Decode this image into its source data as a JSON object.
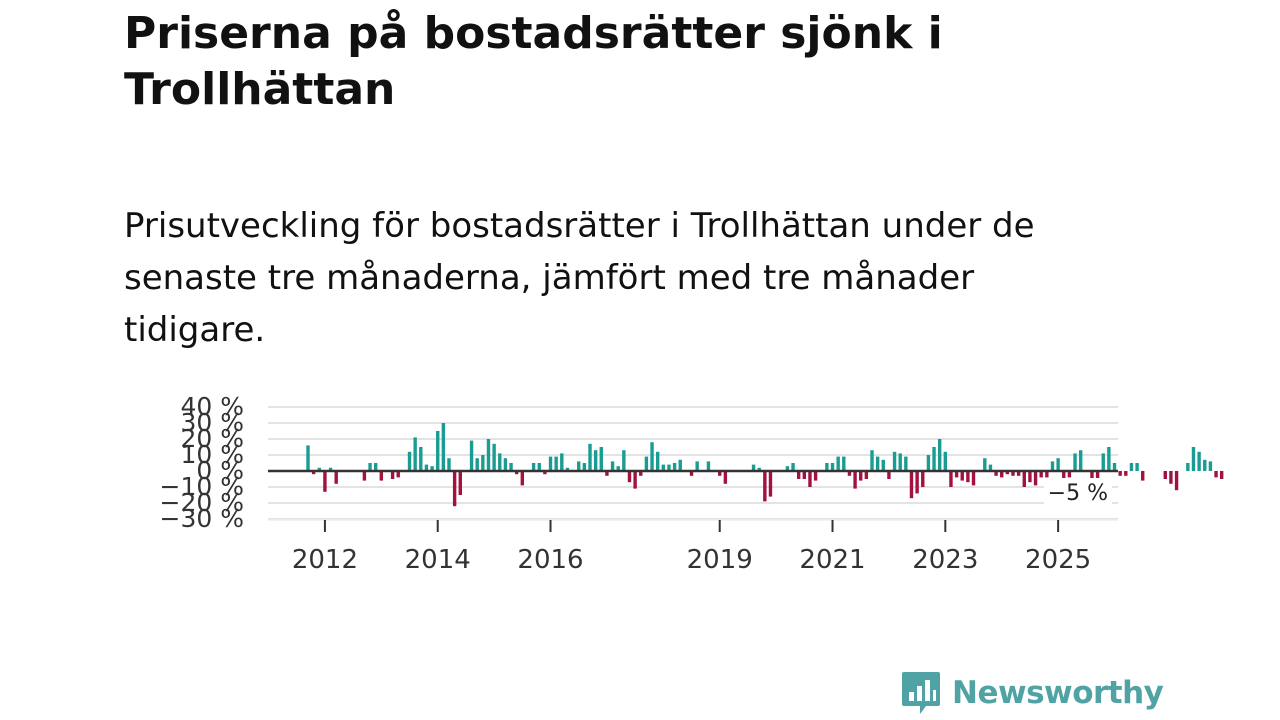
{
  "title": "Priserna på bostadsrätter sjönk i Trollhättan",
  "subtitle": "Prisutveckling för bostadsrätter i Trollhättan under de senaste tre månaderna, jämfört med tre månader tidigare.",
  "brand": {
    "name": "Newsworthy",
    "icon": "newsworthy-logo-icon",
    "color": "#4fa3a5"
  },
  "colors": {
    "positive": "#1a9c93",
    "negative": "#a3123f",
    "grid": "#e3e3e3",
    "zero": "#333333",
    "text": "#333333"
  },
  "chart_data": {
    "type": "bar",
    "title": "Prisutveckling för bostadsrätter i Trollhättan",
    "ylabel": "",
    "xlabel": "",
    "ylim": [
      -30,
      40
    ],
    "yticks": [
      40,
      30,
      20,
      10,
      0,
      -10,
      -20,
      -30
    ],
    "ytick_labels": [
      "40 %",
      "30 %",
      "20 %",
      "10 %",
      "0 %",
      "−10 %",
      "−20 %",
      "−30 %"
    ],
    "xticks": [
      {
        "label": "2012",
        "index": 3
      },
      {
        "label": "2014",
        "index": 23
      },
      {
        "label": "2016",
        "index": 43
      },
      {
        "label": "2019",
        "index": 73
      },
      {
        "label": "2021",
        "index": 93
      },
      {
        "label": "2023",
        "index": 113
      },
      {
        "label": "2025",
        "index": 133
      }
    ],
    "start": "2011-10",
    "end": "2025-09",
    "last_value_label": "−5 %",
    "values": [
      16,
      -2,
      2,
      -13,
      2,
      -8,
      0,
      0,
      0,
      0,
      -6,
      5,
      5,
      -6,
      0,
      -5,
      -4,
      0,
      12,
      21,
      15,
      4,
      3,
      25,
      30,
      8,
      -22,
      -15,
      0,
      19,
      8,
      10,
      20,
      17,
      11,
      8,
      5,
      -2,
      -9,
      0,
      5,
      5,
      -2,
      9,
      9,
      11,
      2,
      0,
      6,
      5,
      17,
      13,
      15,
      -3,
      6,
      3,
      13,
      -7,
      -11,
      -3,
      9,
      18,
      12,
      4,
      4,
      5,
      7,
      0,
      -3,
      6,
      0,
      6,
      0,
      -3,
      -8,
      0,
      0,
      0,
      0,
      4,
      2,
      -19,
      -16,
      0,
      0,
      3,
      5,
      -5,
      -5,
      -10,
      -6,
      0,
      5,
      5,
      9,
      9,
      -3,
      -11,
      -6,
      -5,
      13,
      9,
      7,
      -5,
      12,
      11,
      9,
      -17,
      -14,
      -10,
      10,
      15,
      20,
      12,
      -10,
      -4,
      -6,
      -7,
      -9,
      0,
      8,
      4,
      -3,
      -4,
      -2,
      -3,
      -3,
      -10,
      -7,
      -9,
      -4,
      -4,
      6,
      8,
      -5,
      -4,
      11,
      13,
      0,
      -5,
      -11,
      11,
      15,
      5,
      -3,
      -3,
      5,
      5,
      -6,
      0,
      0,
      0,
      -5,
      -8,
      -12,
      0,
      5,
      15,
      12,
      7,
      6,
      -4,
      -5
    ]
  }
}
